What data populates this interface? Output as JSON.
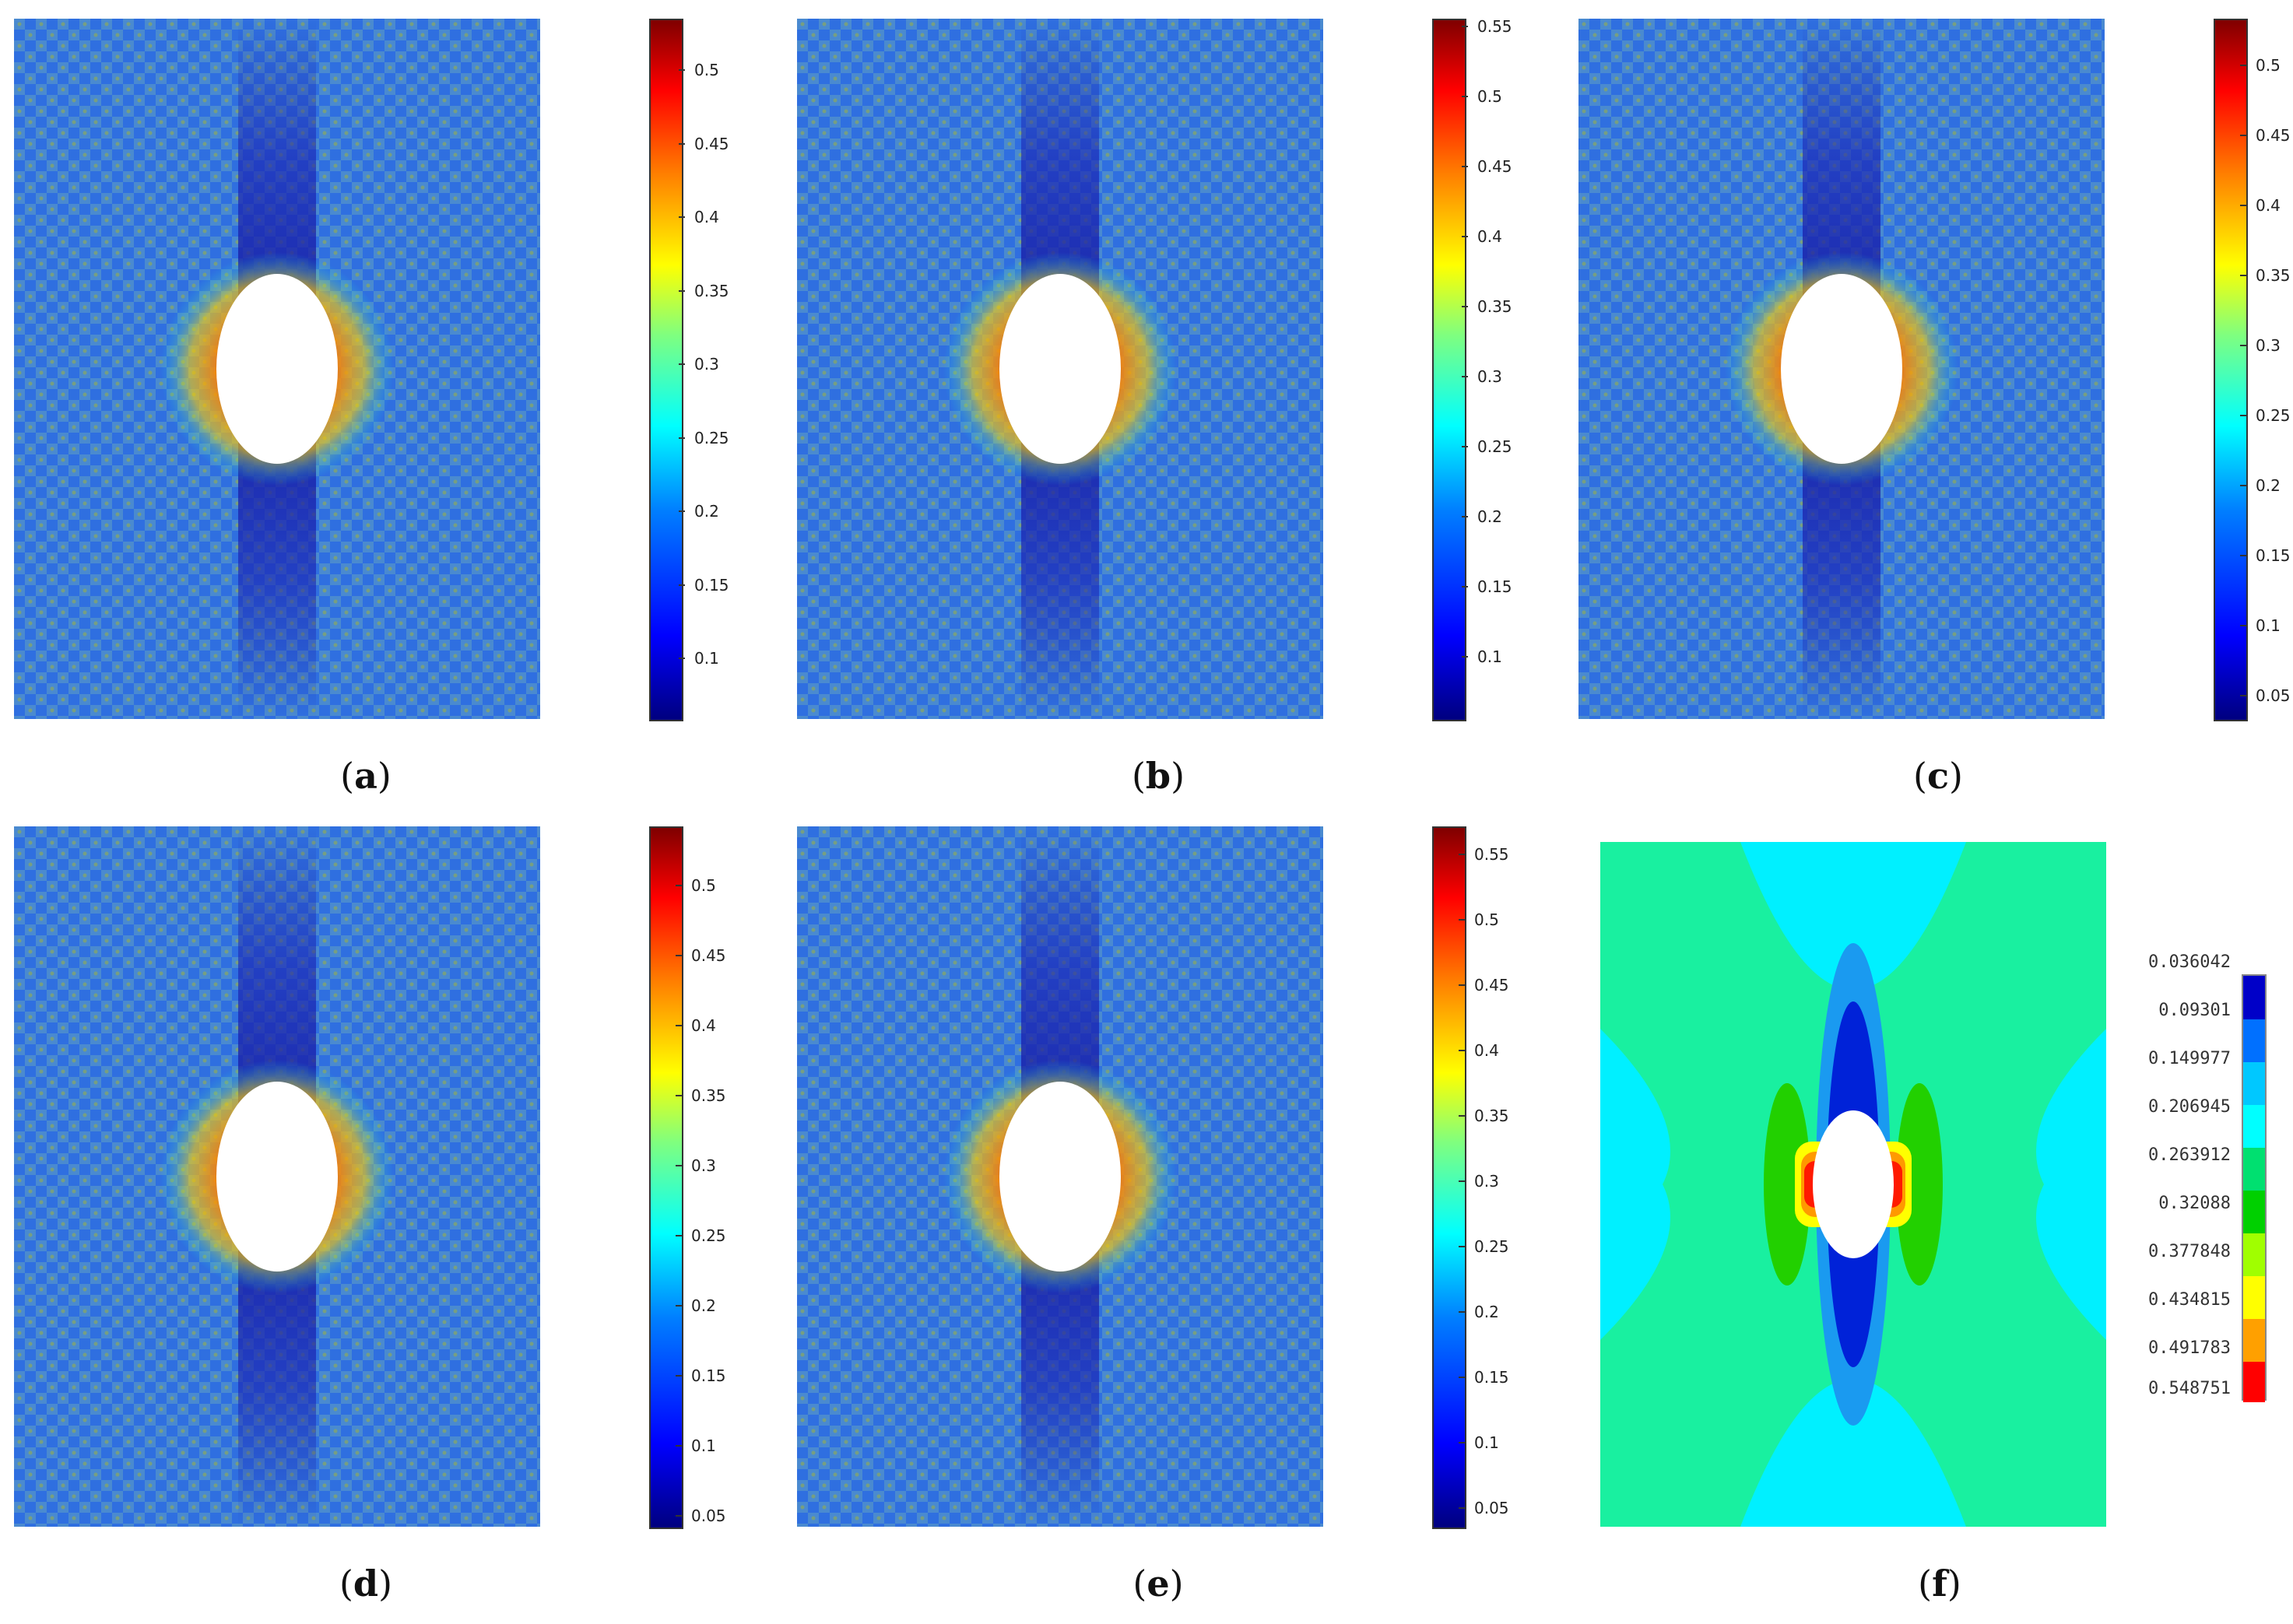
{
  "panels": [
    {
      "caption": "a",
      "ticks": [
        "0.5",
        "0.45",
        "0.4",
        "0.35",
        "0.3",
        "0.25",
        "0.2",
        "0.15",
        "0.1"
      ]
    },
    {
      "caption": "b",
      "ticks": [
        "0.55",
        "0.5",
        "0.45",
        "0.4",
        "0.35",
        "0.3",
        "0.25",
        "0.2",
        "0.15",
        "0.1"
      ]
    },
    {
      "caption": "c",
      "ticks": [
        "0.5",
        "0.45",
        "0.4",
        "0.35",
        "0.3",
        "0.25",
        "0.2",
        "0.15",
        "0.1",
        "0.05"
      ]
    },
    {
      "caption": "d",
      "ticks": [
        "0.5",
        "0.45",
        "0.4",
        "0.35",
        "0.3",
        "0.25",
        "0.2",
        "0.15",
        "0.1",
        "0.05"
      ]
    },
    {
      "caption": "e",
      "ticks": [
        "0.55",
        "0.5",
        "0.45",
        "0.4",
        "0.35",
        "0.3",
        "0.25",
        "0.2",
        "0.15",
        "0.1",
        "0.05"
      ]
    },
    {
      "caption": "f"
    }
  ],
  "legend_f": [
    "0.036042",
    "0.09301",
    "0.149977",
    "0.206945",
    "0.263912",
    "0.32088",
    "0.377848",
    "0.434815",
    "0.491783",
    "0.548751"
  ],
  "legend_f_colors": [
    "#0000c8",
    "#0070ff",
    "#00c8ff",
    "#00ffff",
    "#00e070",
    "#00d000",
    "#a0ff00",
    "#ffff00",
    "#ffa000",
    "#ff0000"
  ]
}
